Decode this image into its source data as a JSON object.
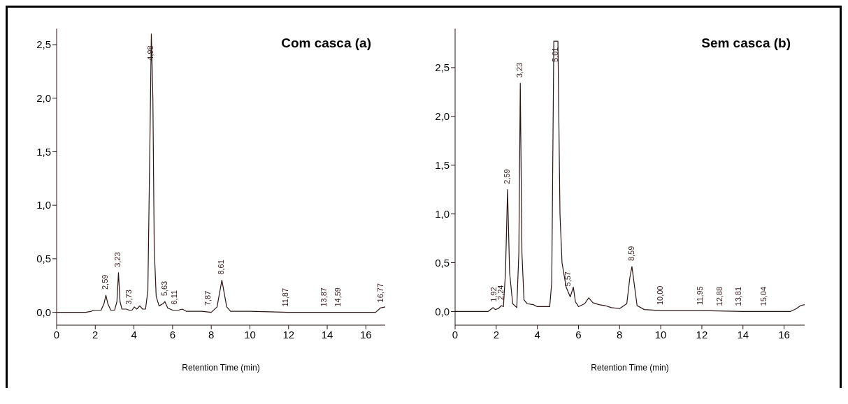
{
  "chart_data": [
    {
      "type": "line",
      "title": "Com casca (a)",
      "xlabel": "Retention Time (min)",
      "color": "#2a1414",
      "marker": "none",
      "x": [
        0,
        1.5,
        1.8,
        1.9,
        2.1,
        2.3,
        2.45,
        2.55,
        2.65,
        2.8,
        3.0,
        3.12,
        3.2,
        3.28,
        3.38,
        3.6,
        3.75,
        3.9,
        4.02,
        4.15,
        4.3,
        4.45,
        4.6,
        4.72,
        4.82,
        4.9,
        4.98,
        5.05,
        5.15,
        5.3,
        5.5,
        5.6,
        5.75,
        6.0,
        6.3,
        6.5,
        6.7,
        7.0,
        7.5,
        8.0,
        8.3,
        8.45,
        8.55,
        8.65,
        8.8,
        9.0,
        10,
        12,
        14,
        16,
        16.5,
        16.75,
        17
      ],
      "values": [
        0,
        0,
        0.01,
        0.02,
        0.02,
        0.02,
        0.08,
        0.16,
        0.08,
        0.02,
        0.02,
        0.1,
        0.37,
        0.1,
        0.03,
        0.03,
        0.02,
        0.02,
        0.05,
        0.03,
        0.06,
        0.03,
        0.03,
        0.2,
        1.5,
        2.6,
        2.0,
        0.6,
        0.15,
        0.06,
        0.08,
        0.1,
        0.04,
        0.02,
        0.02,
        0.03,
        0.01,
        0.01,
        0.01,
        0,
        0.05,
        0.2,
        0.3,
        0.2,
        0.05,
        0.01,
        0.01,
        0,
        0,
        0,
        0,
        0.04,
        0.05
      ],
      "xlim": [
        0,
        17
      ],
      "xticks": [
        0,
        2,
        4,
        6,
        8,
        10,
        12,
        14,
        16
      ],
      "ylim": [
        -0.12,
        2.65
      ],
      "yticks": [
        {
          "value": 0,
          "label": "0,0"
        },
        {
          "value": 0.5,
          "label": "0,5"
        },
        {
          "value": 1,
          "label": "1,0"
        },
        {
          "value": 1.5,
          "label": "1,5"
        },
        {
          "value": 2,
          "label": "2,0"
        },
        {
          "value": 2.5,
          "label": "2,5"
        }
      ],
      "annotations": [
        {
          "text": "2,59",
          "x": 2.55,
          "y": 0.16
        },
        {
          "text": "3,23",
          "x": 3.2,
          "y": 0.37
        },
        {
          "text": "3,73",
          "x": 3.75,
          "y": 0.02
        },
        {
          "text": "4,98",
          "x": 4.9,
          "y": 2.3
        },
        {
          "text": "5,63",
          "x": 5.6,
          "y": 0.1
        },
        {
          "text": "6,11",
          "x": 6.1,
          "y": 0.02
        },
        {
          "text": "7,87",
          "x": 7.87,
          "y": 0.01
        },
        {
          "text": "8,61",
          "x": 8.55,
          "y": 0.3
        },
        {
          "text": "11,87",
          "x": 11.87,
          "y": 0
        },
        {
          "text": "13,87",
          "x": 13.87,
          "y": 0
        },
        {
          "text": "14,59",
          "x": 14.59,
          "y": 0
        },
        {
          "text": "16,77",
          "x": 16.77,
          "y": 0.04
        }
      ]
    },
    {
      "type": "line",
      "title": "Sem casca (b)",
      "xlabel": "Retention Time (min)",
      "color": "#2a1414",
      "marker": "none",
      "x": [
        0,
        1.6,
        1.85,
        1.95,
        2.1,
        2.25,
        2.35,
        2.45,
        2.55,
        2.65,
        2.8,
        3.0,
        3.1,
        3.17,
        3.25,
        3.35,
        3.5,
        3.8,
        4.0,
        4.3,
        4.6,
        4.7,
        4.8,
        5.0,
        5.1,
        5.2,
        5.4,
        5.6,
        5.75,
        5.85,
        6.0,
        6.3,
        6.5,
        6.7,
        7.0,
        7.3,
        7.6,
        8.0,
        8.35,
        8.5,
        8.6,
        8.7,
        8.85,
        9.2,
        10,
        12,
        14,
        16.3,
        16.6,
        16.8,
        17
      ],
      "values": [
        0,
        0,
        0.04,
        0.02,
        0.03,
        0.06,
        0.05,
        0.4,
        1.25,
        0.4,
        0.08,
        0.04,
        0.6,
        2.34,
        0.6,
        0.12,
        0.08,
        0.07,
        0.05,
        0.05,
        0.05,
        0.3,
        2.77,
        2.77,
        1.0,
        0.5,
        0.25,
        0.15,
        0.25,
        0.1,
        0.05,
        0.08,
        0.14,
        0.09,
        0.07,
        0.06,
        0.04,
        0.03,
        0.08,
        0.35,
        0.46,
        0.3,
        0.06,
        0.02,
        0.01,
        0.01,
        0,
        0,
        0.03,
        0.06,
        0.07
      ],
      "xlim": [
        0,
        17
      ],
      "xticks": [
        0,
        2,
        4,
        6,
        8,
        10,
        12,
        14,
        16
      ],
      "ylim": [
        -0.14,
        2.9
      ],
      "yticks": [
        {
          "value": 0,
          "label": "0,0"
        },
        {
          "value": 0.5,
          "label": "0,5"
        },
        {
          "value": 1,
          "label": "1,0"
        },
        {
          "value": 1.5,
          "label": "1,5"
        },
        {
          "value": 2,
          "label": "2,0"
        },
        {
          "value": 2.5,
          "label": "2,5"
        }
      ],
      "annotations": [
        {
          "text": "1,92",
          "x": 1.9,
          "y": 0.04
        },
        {
          "text": "2,24",
          "x": 2.25,
          "y": 0.06
        },
        {
          "text": "2,59",
          "x": 2.55,
          "y": 1.25
        },
        {
          "text": "3,23",
          "x": 3.17,
          "y": 2.34
        },
        {
          "text": "5,01",
          "x": 4.9,
          "y": 2.5
        },
        {
          "text": "5,57",
          "x": 5.5,
          "y": 0.2
        },
        {
          "text": "8,59",
          "x": 8.6,
          "y": 0.46
        },
        {
          "text": "10,00",
          "x": 10,
          "y": 0.01
        },
        {
          "text": "11,95",
          "x": 11.95,
          "y": 0.01
        },
        {
          "text": "12,88",
          "x": 12.88,
          "y": 0
        },
        {
          "text": "13,81",
          "x": 13.81,
          "y": 0
        },
        {
          "text": "15,04",
          "x": 15.04,
          "y": 0
        }
      ]
    }
  ]
}
